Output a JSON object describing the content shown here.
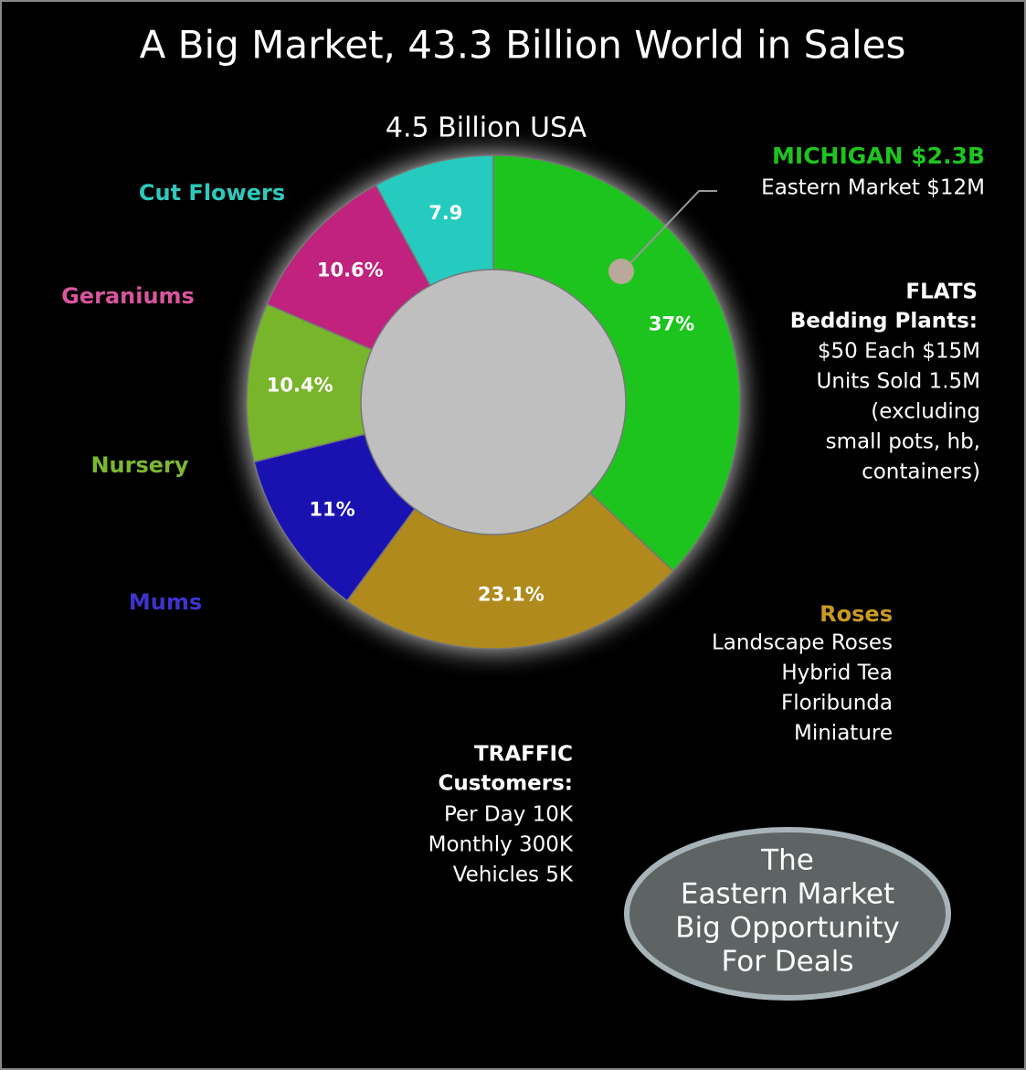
{
  "chart_data": {
    "type": "donut",
    "title": "A Big Market, 43.3 Billion World in Sales",
    "subtitle": "4.5 Billion USA",
    "categories": [
      null,
      "Roses",
      "Mums",
      "Nursery",
      "Geraniums",
      "Cut Flowers"
    ],
    "values": [
      37,
      23.1,
      11,
      10.4,
      10.6,
      7.9
    ],
    "value_labels": [
      "37%",
      "23.1%",
      "11%",
      "10.4%",
      "10.6%",
      "7.9"
    ],
    "colors": [
      "#1ec41e",
      "#b08a1c",
      "#1a12b0",
      "#78b52a",
      "#c0227e",
      "#25cbbe"
    ],
    "label_colors": [
      null,
      "#c99a22",
      "#3d33cc",
      "#7ab830",
      "#d9559f",
      "#2ec9bd"
    ],
    "michigan": {
      "title": "MICHIGAN $2.3B",
      "callout": "Eastern Market $12M"
    },
    "flats": {
      "heading": [
        "FLATS",
        "Bedding Plants:"
      ],
      "lines": [
        "$50 Each $15M",
        "Units Sold 1.5M",
        "(excluding",
        "small  pots, hb,",
        "containers)"
      ]
    },
    "roses_lines": [
      "Landscape Roses",
      "Hybrid Tea",
      "Floribunda",
      "Miniature"
    ],
    "traffic": {
      "heading": [
        "TRAFFIC",
        "Customers:"
      ],
      "lines": [
        "Per Day 10K",
        "Monthly 300K",
        "Vehicles 5K"
      ]
    },
    "badge": [
      "The",
      "Eastern Market",
      "Big Opportunity",
      "For Deals"
    ]
  }
}
